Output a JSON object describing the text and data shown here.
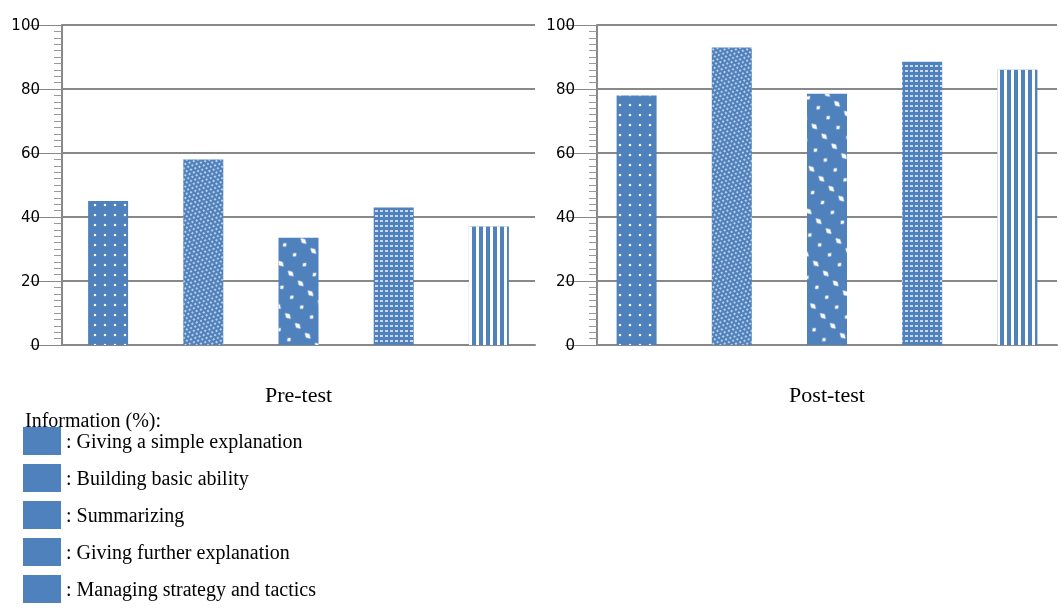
{
  "chart_data": [
    {
      "type": "bar",
      "xlabel": "Pre-test",
      "legend_title": "Information (%):",
      "categories": [
        null
      ],
      "series": [
        {
          "name": ": Giving a simple explanation",
          "color": "#4f81bd",
          "values": [
            45
          ]
        },
        {
          "name": ": Building basic ability",
          "color": "#4f81bd",
          "values": [
            58
          ]
        },
        {
          "name": ": Summarizing",
          "color": "#4f81bd",
          "values": [
            33.5
          ]
        },
        {
          "name": ": Giving further explanation",
          "color": "#4f81bd",
          "values": [
            43
          ]
        },
        {
          "name": ": Managing strategy and tactics",
          "color": "#4f81bd",
          "values": [
            37
          ]
        }
      ],
      "ylim": [
        0,
        100
      ],
      "yticks": [
        0,
        20,
        40,
        60,
        80,
        100
      ],
      "grid": "y",
      "legend": "bottom left"
    },
    {
      "type": "bar",
      "xlabel": "Post-test",
      "categories": [
        null
      ],
      "series": [
        {
          "color": "#4f81bd",
          "values": [
            78
          ]
        },
        {
          "color": "#4f81bd",
          "values": [
            93
          ]
        },
        {
          "color": "#4f81bd",
          "values": [
            78.5
          ]
        },
        {
          "color": "#4f81bd",
          "values": [
            88.5
          ]
        },
        {
          "color": "#4f81bd",
          "values": [
            86
          ]
        }
      ],
      "ylim": [
        0,
        100
      ],
      "yticks": [
        0,
        20,
        40,
        60,
        80,
        100
      ],
      "grid": "y"
    }
  ]
}
